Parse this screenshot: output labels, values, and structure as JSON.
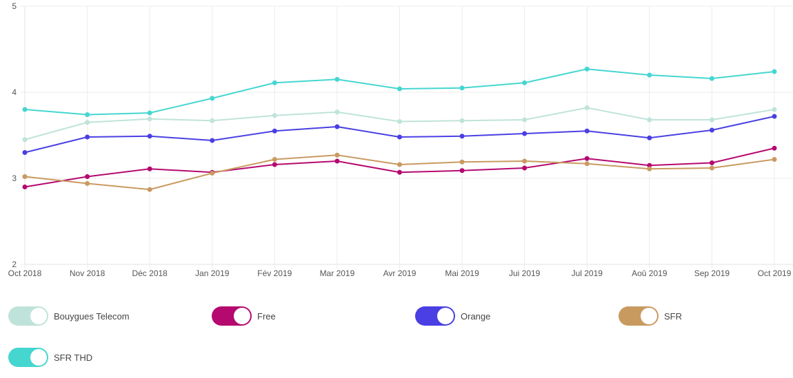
{
  "chart_data": {
    "type": "line",
    "title": "",
    "xlabel": "",
    "ylabel": "",
    "ylim": [
      2,
      5
    ],
    "yticks": [
      2,
      3,
      4,
      5
    ],
    "grid": true,
    "legend_position": "bottom",
    "categories": [
      "Oct 2018",
      "Nov 2018",
      "Déc 2018",
      "Jan 2019",
      "Fév 2019",
      "Mar 2019",
      "Avr 2019",
      "Mai 2019",
      "Jui 2019",
      "Jul 2019",
      "Aoû 2019",
      "Sep 2019",
      "Oct 2019"
    ],
    "series": [
      {
        "name": "Bouygues Telecom",
        "color": "#bfe3da",
        "values": [
          3.45,
          3.65,
          3.69,
          3.67,
          3.73,
          3.77,
          3.66,
          3.67,
          3.68,
          3.82,
          3.68,
          3.68,
          3.8
        ]
      },
      {
        "name": "Free",
        "color": "#b5096f",
        "values": [
          2.9,
          3.02,
          3.11,
          3.07,
          3.16,
          3.2,
          3.07,
          3.09,
          3.12,
          3.23,
          3.15,
          3.18,
          3.35
        ]
      },
      {
        "name": "Orange",
        "color": "#4a3fe3",
        "values": [
          3.3,
          3.48,
          3.49,
          3.44,
          3.55,
          3.6,
          3.48,
          3.49,
          3.52,
          3.55,
          3.47,
          3.56,
          3.72
        ]
      },
      {
        "name": "SFR",
        "color": "#c99a60",
        "values": [
          3.02,
          2.94,
          2.87,
          3.06,
          3.22,
          3.27,
          3.16,
          3.19,
          3.2,
          3.17,
          3.11,
          3.12,
          3.22
        ]
      },
      {
        "name": "SFR THD",
        "color": "#45d6d0",
        "values": [
          3.8,
          3.74,
          3.76,
          3.93,
          4.11,
          4.15,
          4.04,
          4.05,
          4.11,
          4.27,
          4.2,
          4.16,
          4.24
        ]
      }
    ]
  }
}
